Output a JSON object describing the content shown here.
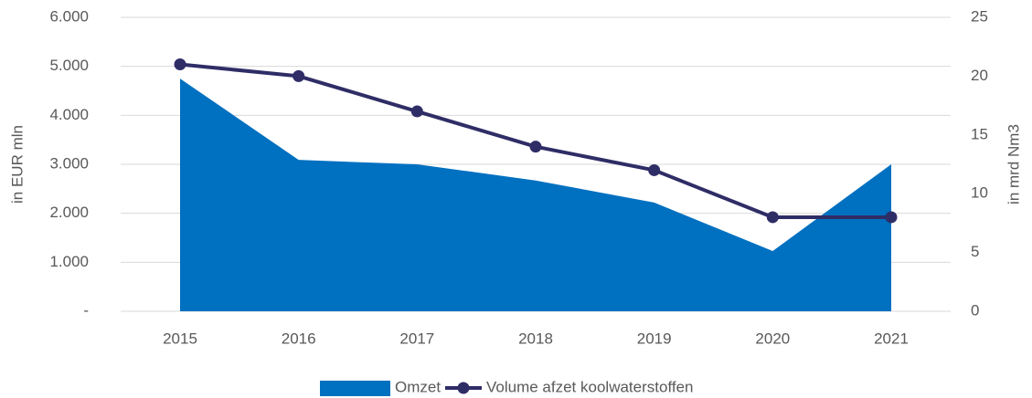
{
  "chart_data": {
    "type": "combo",
    "categories": [
      "2015",
      "2016",
      "2017",
      "2018",
      "2019",
      "2020",
      "2021"
    ],
    "ylabel": "in EUR mln",
    "y2label": "in mrd Nm3",
    "ylim": [
      0,
      6000
    ],
    "yticks": [
      {
        "value": 0,
        "label": "-"
      },
      {
        "value": 1000,
        "label": "1.000"
      },
      {
        "value": 2000,
        "label": "2.000"
      },
      {
        "value": 3000,
        "label": "3.000"
      },
      {
        "value": 4000,
        "label": "4.000"
      },
      {
        "value": 5000,
        "label": "5.000"
      },
      {
        "value": 6000,
        "label": "6.000"
      }
    ],
    "y2lim": [
      0,
      25
    ],
    "y2ticks": [
      0,
      5,
      10,
      15,
      20,
      25
    ],
    "grid": true,
    "legend": "bottom",
    "series": [
      {
        "name": "Omzet",
        "type": "area",
        "color": "#0070c0",
        "values": [
          4750,
          3090,
          3000,
          2670,
          2220,
          1230,
          3000
        ]
      },
      {
        "name": "Volume afzet koolwaterstoffen",
        "type": "line",
        "axis": "y2",
        "color": "#2f2d66",
        "values": [
          21,
          20,
          17,
          14,
          12,
          8,
          8
        ]
      }
    ]
  }
}
